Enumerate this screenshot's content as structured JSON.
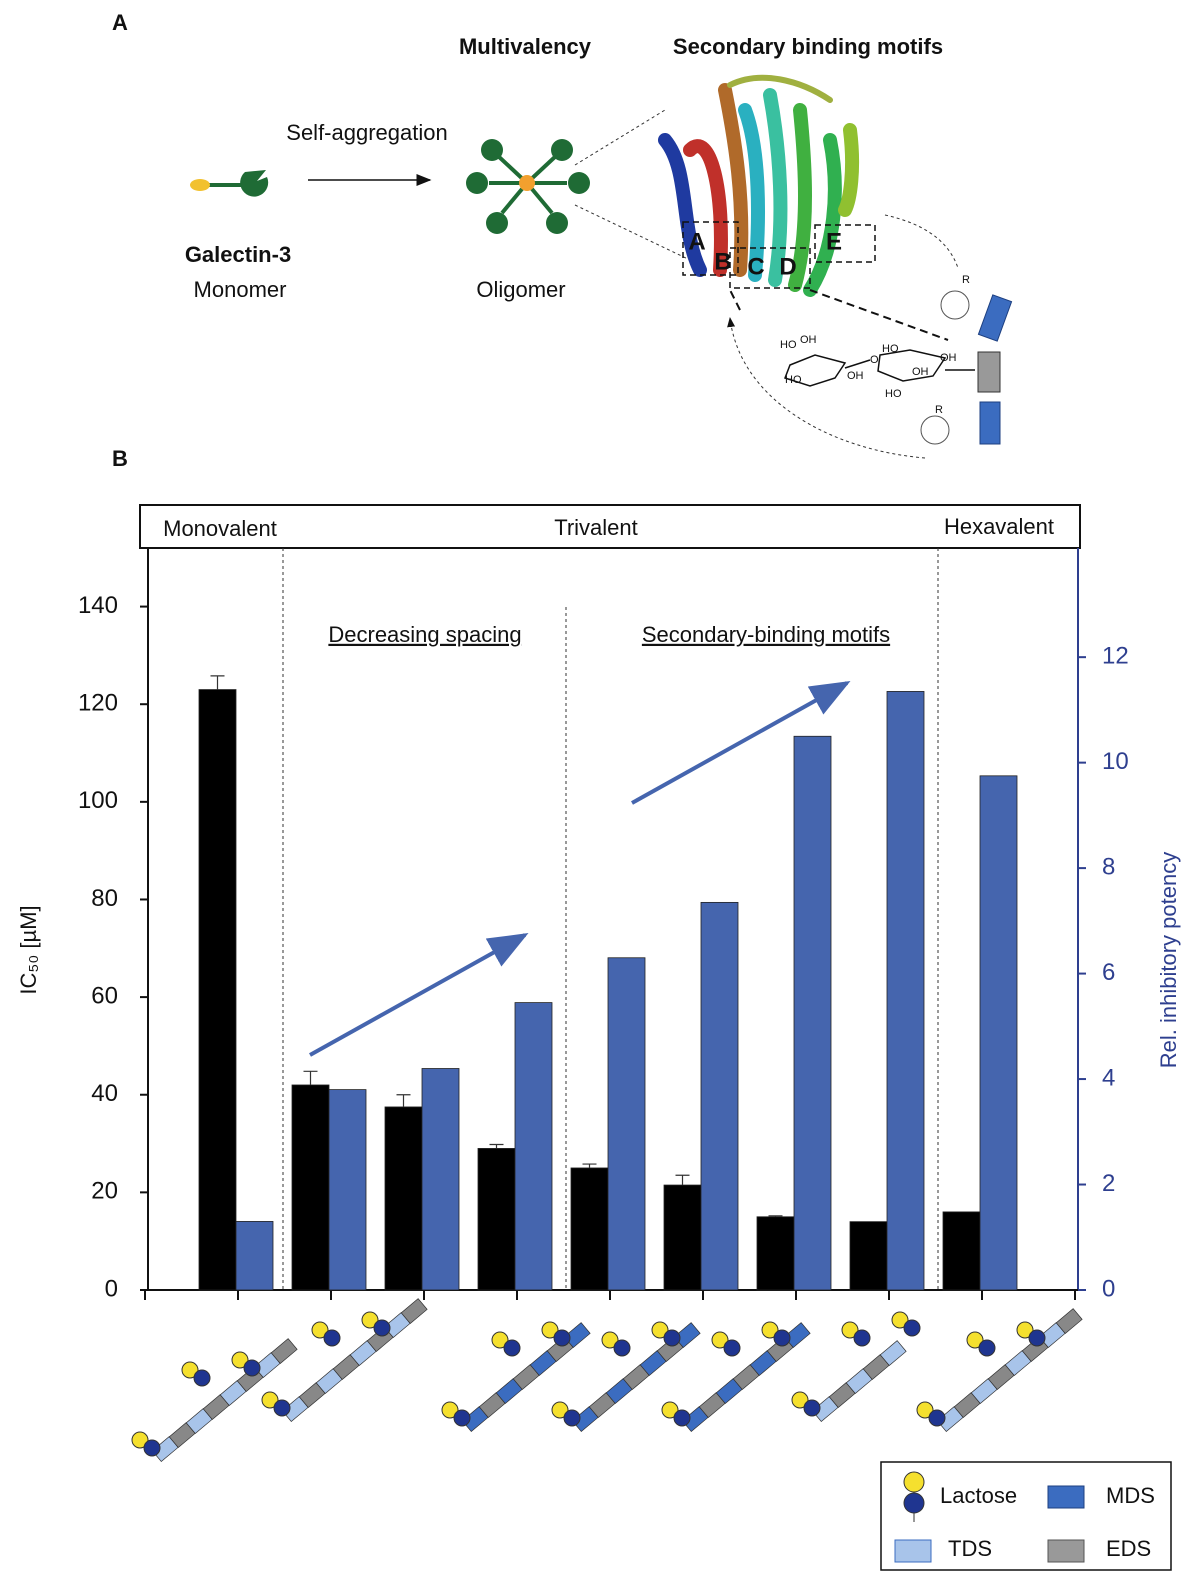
{
  "panel_a": {
    "label": "A",
    "heading_multivalency": "Multivalency",
    "heading_motifs": "Secondary binding motifs",
    "arrow_label": "Self-aggregation",
    "protein": "Galectin-3",
    "monomer": "Monomer",
    "oligomer": "Oligomer",
    "sites": [
      "A",
      "B",
      "C",
      "D",
      "E"
    ],
    "structure_labels": [
      "HO",
      "OH",
      "HO",
      "OH",
      "HO",
      "OH",
      "O",
      "HO",
      "OH",
      "R",
      "R"
    ]
  },
  "panel_b_label": "B",
  "chart_data": {
    "type": "bar",
    "sections": [
      "Monovalent",
      "Trivalent",
      "Hexavalent"
    ],
    "subsections": [
      "Decreasing spacing",
      "Secondary-binding motifs"
    ],
    "ylabel": "IC₅₀ [µM]",
    "y2label": "Rel. inhibitory potency",
    "categories": [
      null,
      null,
      null,
      null,
      null,
      null,
      null,
      null,
      null
    ],
    "series": [
      {
        "color": "#000000",
        "values": [
          123,
          42,
          37.5,
          29,
          25,
          21.5,
          15,
          14,
          16
        ],
        "errors": [
          2.8,
          2.8,
          2.5,
          0.8,
          0.8,
          2,
          0.2,
          null,
          null
        ]
      },
      {
        "color": "#4565ae",
        "axis": "y2",
        "values": [
          1.3,
          3.8,
          4.2,
          5.45,
          6.3,
          7.35,
          10.5,
          11.35,
          9.75
        ]
      }
    ],
    "ylim": [
      0,
      152
    ],
    "yticks": [
      0,
      20,
      40,
      60,
      80,
      100,
      120,
      140
    ],
    "y2lim": [
      0,
      14.07
    ],
    "y2ticks": [
      0,
      2,
      4,
      6,
      8,
      10,
      12
    ],
    "legend": [
      "Lactose",
      "MDS",
      "TDS",
      "EDS"
    ]
  }
}
